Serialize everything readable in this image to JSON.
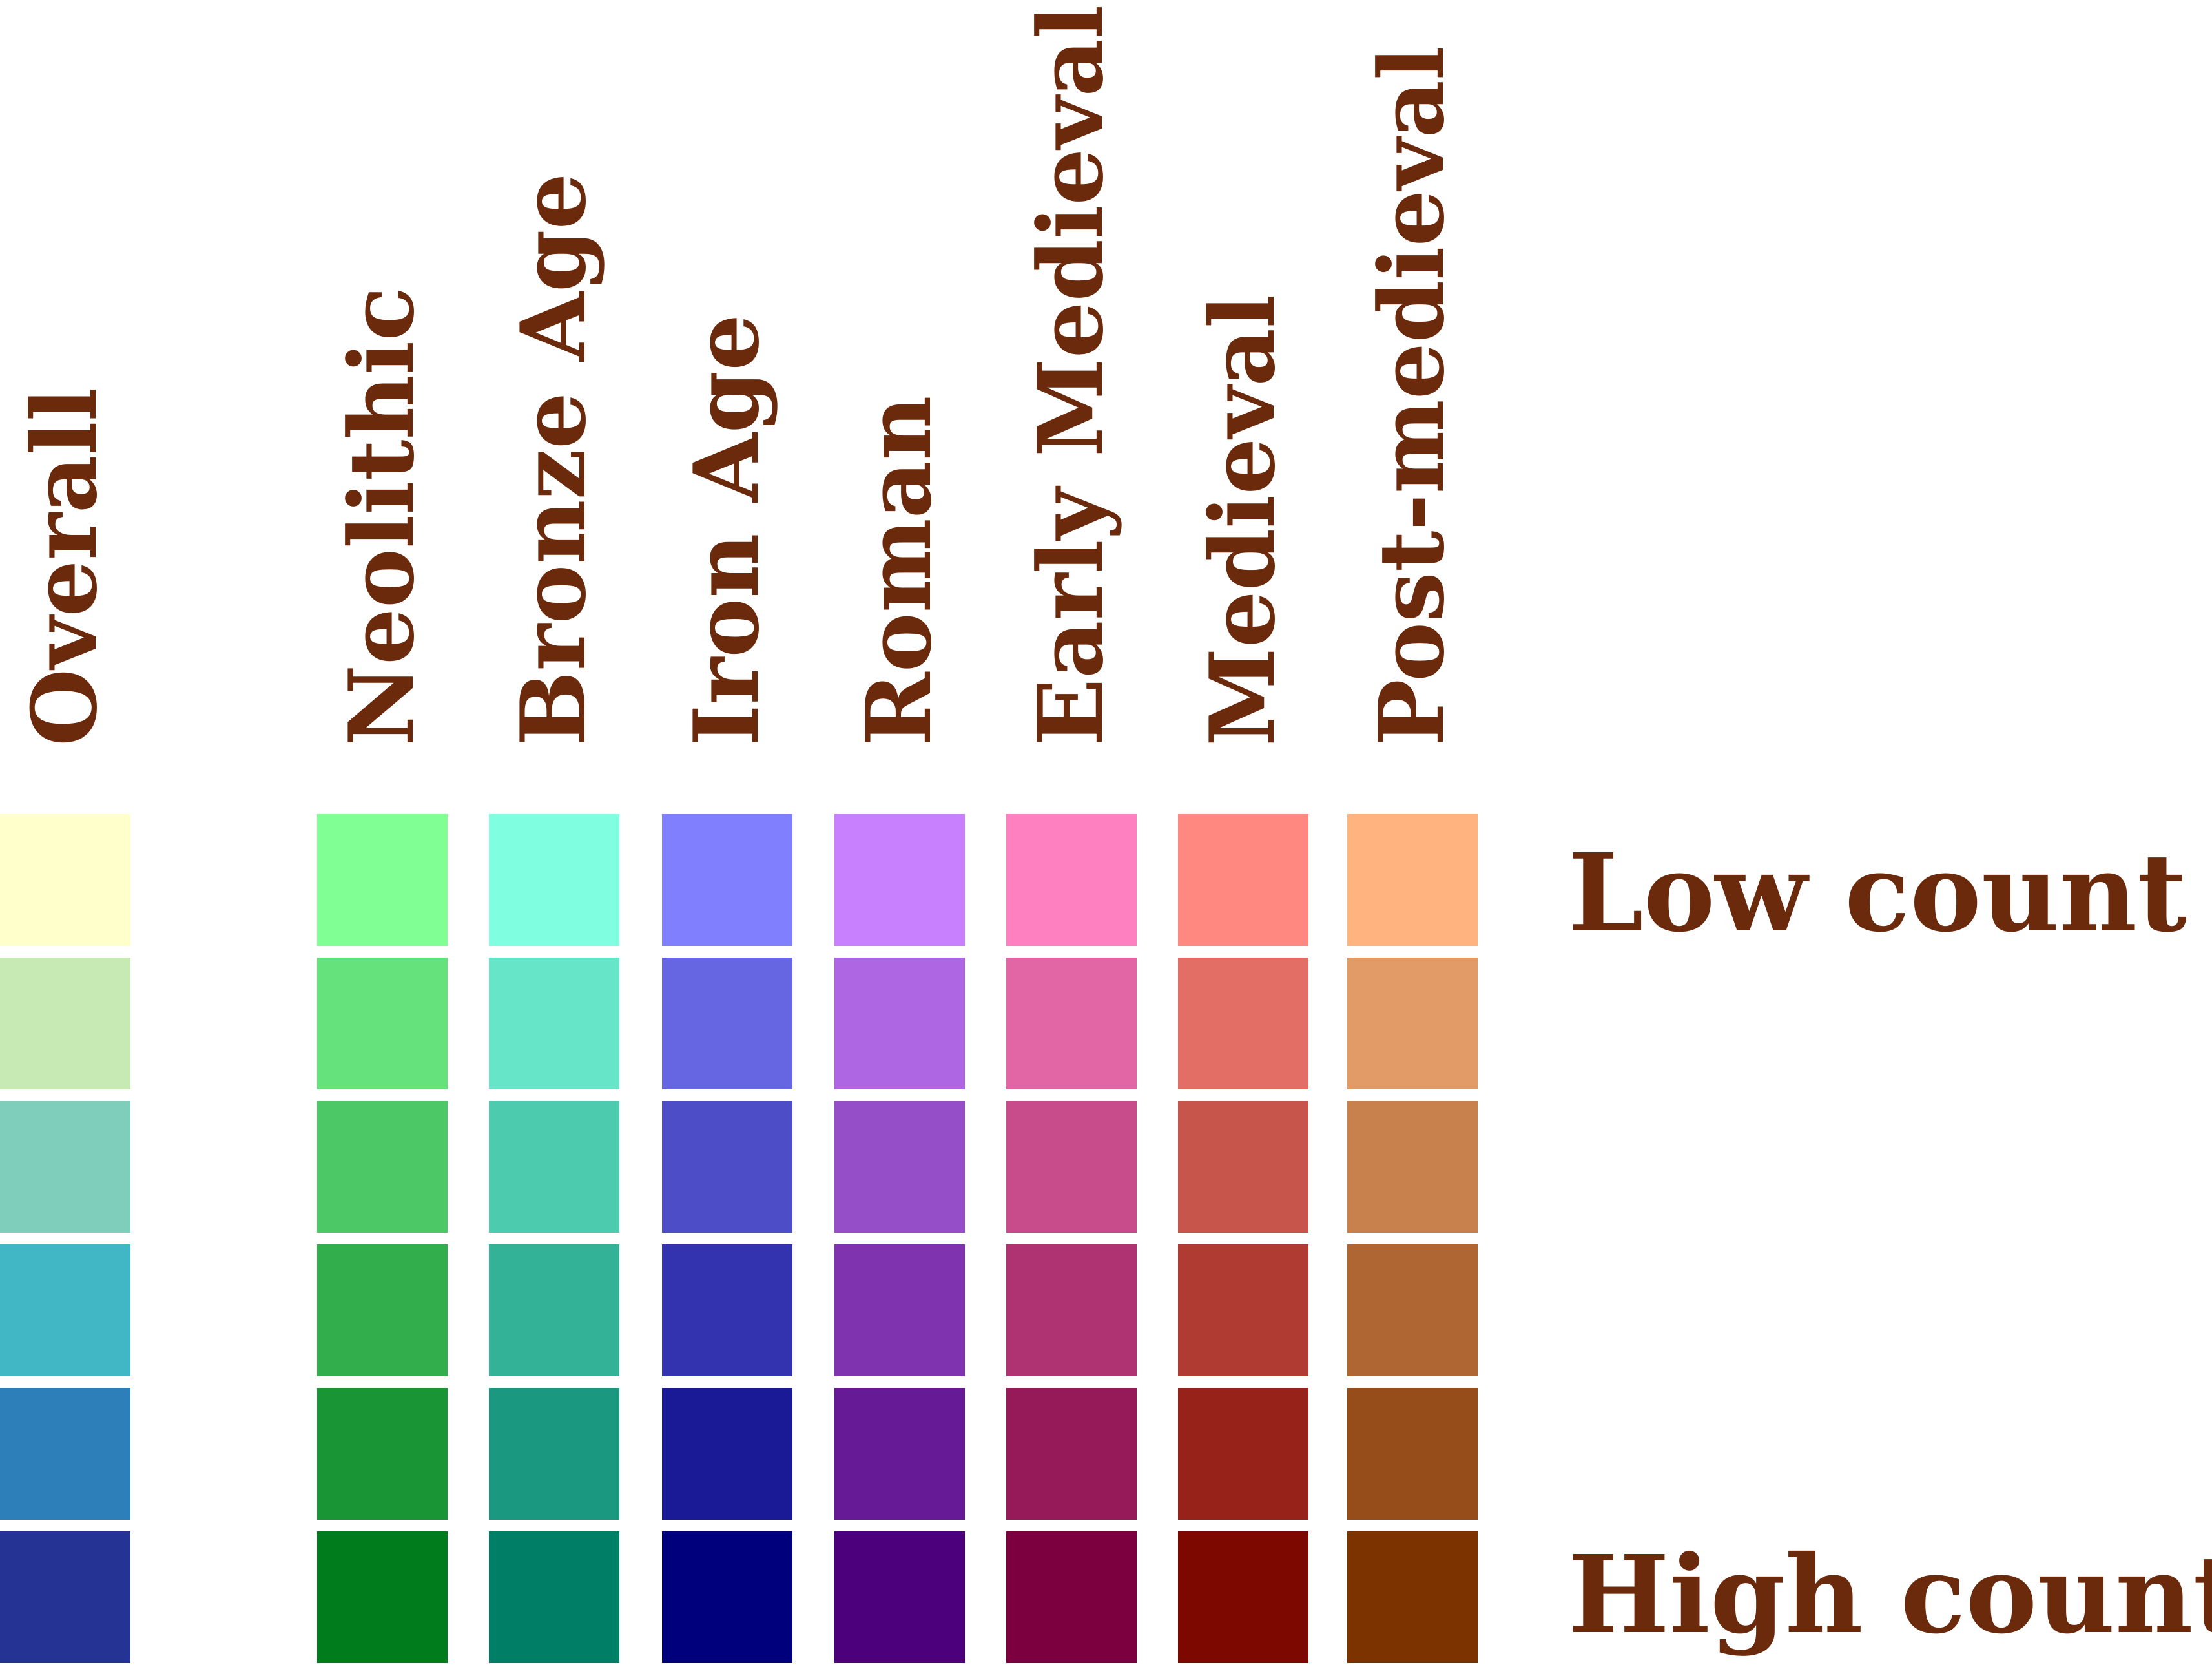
{
  "legend": {
    "scale_labels": {
      "low": "Low count",
      "high": "High count"
    },
    "columns": [
      {
        "label": "Overall",
        "colors": [
          "#FFFFCC",
          "#C7E9B4",
          "#7FCDBB",
          "#41B6C4",
          "#2C7FB8",
          "#253494"
        ]
      },
      {
        "label": "Neolithic",
        "colors": [
          "#80FF94",
          "#66E27C",
          "#4CC866",
          "#33AE4D",
          "#1A9536",
          "#007C1D"
        ]
      },
      {
        "label": "Bronze Age",
        "colors": [
          "#80FFE0",
          "#66E5C8",
          "#4CCBAF",
          "#33B297",
          "#1A9980",
          "#007F67"
        ]
      },
      {
        "label": "Iron Age",
        "colors": [
          "#8080FF",
          "#6666E2",
          "#4D4DC8",
          "#3333AF",
          "#1A1A96",
          "#00007C"
        ]
      },
      {
        "label": "Roman",
        "colors": [
          "#C880FF",
          "#AF66E2",
          "#964DC8",
          "#7F33AF",
          "#661A96",
          "#4D007C"
        ]
      },
      {
        "label": "Early Medieval",
        "colors": [
          "#FF80C0",
          "#E266A6",
          "#C84C8C",
          "#AF3373",
          "#961A5A",
          "#7C0040"
        ]
      },
      {
        "label": "Medieval",
        "colors": [
          "#FF8880",
          "#E26E66",
          "#C8554C",
          "#AF3B33",
          "#96221A",
          "#7C0800"
        ]
      },
      {
        "label": "Post-medieval",
        "colors": [
          "#FFB480",
          "#E29A66",
          "#C8804C",
          "#AF6633",
          "#964D1A",
          "#7C3300"
        ]
      }
    ]
  }
}
